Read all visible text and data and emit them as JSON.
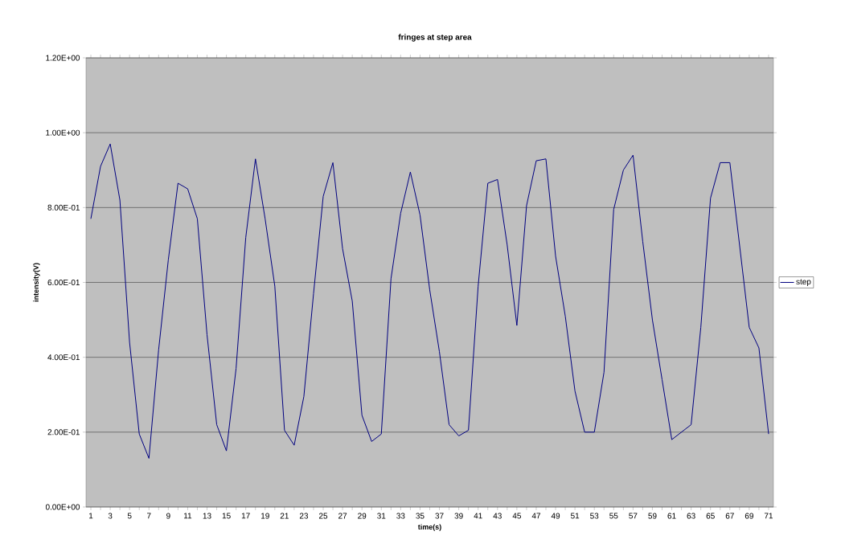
{
  "chart_data": {
    "type": "line",
    "title": "fringes at step area",
    "xlabel": "time(s)",
    "ylabel": "intensity(V)",
    "categories": [
      "1",
      null,
      "3",
      null,
      "5",
      null,
      "7",
      null,
      "9",
      null,
      "11",
      null,
      "13",
      null,
      "15",
      null,
      "17",
      null,
      "19",
      null,
      "21",
      null,
      "23",
      null,
      "25",
      null,
      "27",
      null,
      "29",
      null,
      "31",
      null,
      "33",
      null,
      "35",
      null,
      "37",
      null,
      "39",
      null,
      "41",
      null,
      "43",
      null,
      "45",
      null,
      "47",
      null,
      "49",
      null,
      "51",
      null,
      "53",
      null,
      "55",
      null,
      "57",
      null,
      "59",
      null,
      "61",
      null,
      "63",
      null,
      "65",
      null,
      "67",
      null,
      "69",
      null,
      "71"
    ],
    "series": [
      {
        "name": "step",
        "color": "#000080",
        "values": [
          0.77,
          0.91,
          0.97,
          0.82,
          0.44,
          0.195,
          0.13,
          0.42,
          0.66,
          0.865,
          0.85,
          0.77,
          0.46,
          0.22,
          0.15,
          0.37,
          0.72,
          0.93,
          0.77,
          0.59,
          0.205,
          0.165,
          0.295,
          0.57,
          0.83,
          0.92,
          0.69,
          0.55,
          0.245,
          0.175,
          0.195,
          0.61,
          0.785,
          0.895,
          0.78,
          0.58,
          0.415,
          0.22,
          0.19,
          0.205,
          0.59,
          0.865,
          0.875,
          0.7,
          0.485,
          0.805,
          0.925,
          0.93,
          0.67,
          0.51,
          0.31,
          0.2,
          0.2,
          0.36,
          0.795,
          0.9,
          0.94,
          0.71,
          0.5,
          0.34,
          0.18,
          0.2,
          0.22,
          0.48,
          0.825,
          0.92,
          0.92,
          0.7,
          0.48,
          0.425,
          0.195
        ]
      }
    ],
    "ylim": [
      0,
      1.2
    ],
    "yticks": [
      {
        "value": 0,
        "label": "0.00E+00"
      },
      {
        "value": 0.2,
        "label": "2.00E-01"
      },
      {
        "value": 0.4,
        "label": "4.00E-01"
      },
      {
        "value": 0.6,
        "label": "6.00E-01"
      },
      {
        "value": 0.8,
        "label": "8.00E-01"
      },
      {
        "value": 1.0,
        "label": "1.00E+00"
      },
      {
        "value": 1.2,
        "label": "1.20E+00"
      }
    ],
    "grid": "y",
    "legend": "right",
    "marker": "none",
    "line_style": "solid"
  }
}
